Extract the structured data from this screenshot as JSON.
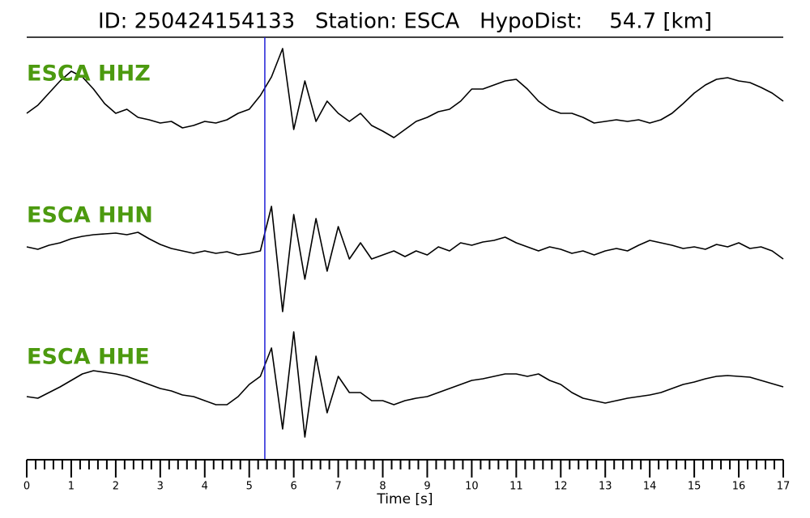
{
  "chart_data": {
    "type": "line",
    "title": "ID: 250424154133   Station: ESCA   HypoDist:    54.7 [km]",
    "xlabel": "Time [s]",
    "xlim": [
      0,
      17
    ],
    "xticks": [
      0,
      1,
      2,
      3,
      4,
      5,
      6,
      7,
      8,
      9,
      10,
      11,
      12,
      13,
      14,
      15,
      16,
      17
    ],
    "ylim": [
      -8,
      8
    ],
    "label_color": "#4c9a0f",
    "marker_x": 5.35,
    "marker_color": "#1f1fd6",
    "x": [
      0,
      0.25,
      0.5,
      0.75,
      1,
      1.25,
      1.5,
      1.75,
      2,
      2.25,
      2.5,
      2.75,
      3,
      3.25,
      3.5,
      3.75,
      4,
      4.25,
      4.5,
      4.75,
      5,
      5.25,
      5.5,
      5.75,
      6,
      6.25,
      6.5,
      6.75,
      7,
      7.25,
      7.5,
      7.75,
      8,
      8.25,
      8.5,
      8.75,
      9,
      9.25,
      9.5,
      9.75,
      10,
      10.25,
      10.5,
      10.75,
      11,
      11.25,
      11.5,
      11.75,
      12,
      12.25,
      12.5,
      12.75,
      13,
      13.25,
      13.5,
      13.75,
      14,
      14.25,
      14.5,
      14.75,
      15,
      15.25,
      15.5,
      15.75,
      16,
      16.25,
      16.5,
      16.75,
      17
    ],
    "series": [
      {
        "name": "ESCA HHZ",
        "color": "#000000",
        "values": [
          -1,
          0,
          1.5,
          3,
          4.2,
          3.5,
          2,
          0.2,
          -1,
          -0.5,
          -1.5,
          -1.8,
          -2.2,
          -2,
          -2.8,
          -2.5,
          -2,
          -2.2,
          -1.8,
          -1,
          -0.5,
          1.2,
          3.5,
          7,
          -3,
          3,
          -2,
          0.5,
          -1,
          -2,
          -1,
          -2.5,
          -3.2,
          -4,
          -3,
          -2,
          -1.5,
          -0.8,
          -0.5,
          0.5,
          2,
          2,
          2.5,
          3,
          3.2,
          2,
          0.5,
          -0.5,
          -1,
          -1,
          -1.5,
          -2.2,
          -2,
          -1.8,
          -2,
          -1.8,
          -2.2,
          -1.8,
          -1,
          0.2,
          1.5,
          2.5,
          3.2,
          3.4,
          3,
          2.8,
          2.2,
          1.5,
          0.5
        ]
      },
      {
        "name": "ESCA HHN",
        "color": "#000000",
        "values": [
          0,
          -0.3,
          0.2,
          0.5,
          1,
          1.3,
          1.5,
          1.6,
          1.7,
          1.5,
          1.8,
          1,
          0.3,
          -0.2,
          -0.5,
          -0.8,
          -0.5,
          -0.8,
          -0.6,
          -1,
          -0.8,
          -0.5,
          5,
          -8,
          4,
          -4,
          3.5,
          -3,
          2.5,
          -1.5,
          0.5,
          -1.5,
          -1,
          -0.5,
          -1.2,
          -0.5,
          -1,
          0,
          -0.5,
          0.5,
          0.2,
          0.6,
          0.8,
          1.2,
          0.5,
          0,
          -0.5,
          0,
          -0.3,
          -0.8,
          -0.5,
          -1,
          -0.5,
          -0.2,
          -0.5,
          0.2,
          0.8,
          0.5,
          0.2,
          -0.2,
          0,
          -0.3,
          0.3,
          0,
          0.5,
          -0.2,
          0,
          -0.5,
          -1.5
        ]
      },
      {
        "name": "ESCA HHE",
        "color": "#000000",
        "values": [
          -1,
          -1.2,
          -0.5,
          0.2,
          1,
          1.8,
          2.2,
          2,
          1.8,
          1.5,
          1,
          0.5,
          0,
          -0.3,
          -0.8,
          -1,
          -1.5,
          -2,
          -2,
          -1,
          0.5,
          1.5,
          5,
          -5,
          7,
          -6,
          4,
          -3,
          1.5,
          -0.5,
          -0.5,
          -1.5,
          -1.5,
          -2,
          -1.5,
          -1.2,
          -1,
          -0.5,
          0,
          0.5,
          1,
          1.2,
          1.5,
          1.8,
          1.8,
          1.5,
          1.8,
          1,
          0.5,
          -0.5,
          -1.2,
          -1.5,
          -1.8,
          -1.5,
          -1.2,
          -1,
          -0.8,
          -0.5,
          0,
          0.5,
          0.8,
          1.2,
          1.5,
          1.6,
          1.5,
          1.4,
          1,
          0.6,
          0.2
        ]
      }
    ]
  }
}
